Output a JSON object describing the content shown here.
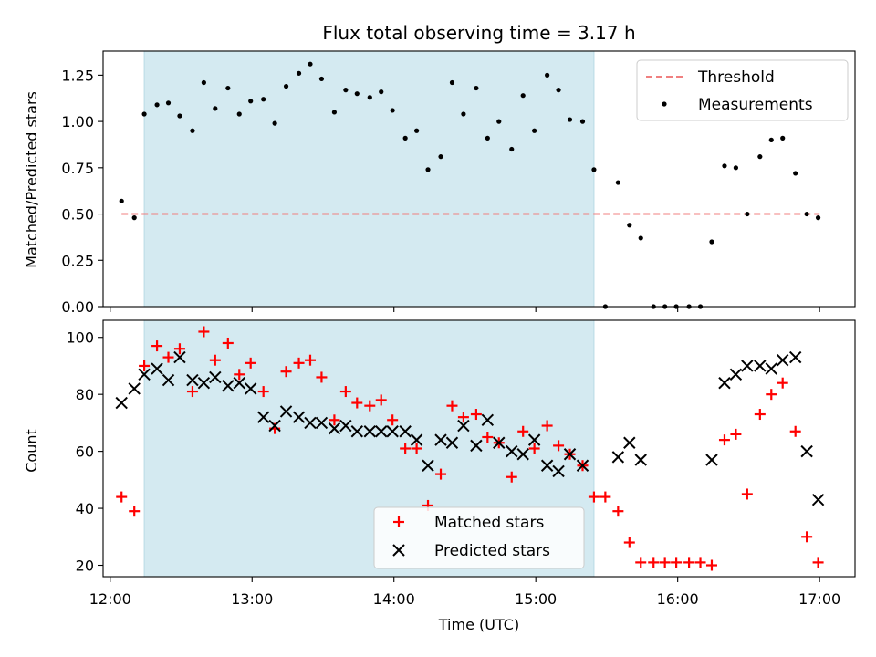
{
  "chart_data": [
    {
      "type": "scatter",
      "title": "Flux total observing time = 3.17 h",
      "ylabel": "Matched/Predicted stars",
      "xlabel": "",
      "xlim": [
        11.95,
        17.25
      ],
      "ylim": [
        0,
        1.38
      ],
      "yticks": [
        0,
        0.25,
        0.5,
        0.75,
        1.0,
        1.25
      ],
      "ytick_labels": [
        "0.00",
        "0.25",
        "0.50",
        "0.75",
        "1.00",
        "1.25"
      ],
      "xticks": [
        12,
        13,
        14,
        15,
        16,
        17
      ],
      "shaded_x": [
        12.24,
        15.41
      ],
      "shade_color": "#d4eaf1",
      "legend_position": "top-right",
      "threshold": {
        "name": "Threshold",
        "x": [
          12.08,
          17.0
        ],
        "y": 0.5,
        "color": "#f08080"
      },
      "series": [
        {
          "name": "Measurements",
          "color": "#000000",
          "x": [
            12.08,
            12.17,
            12.24,
            12.33,
            12.41,
            12.49,
            12.58,
            12.66,
            12.74,
            12.83,
            12.91,
            12.99,
            13.08,
            13.16,
            13.24,
            13.33,
            13.41,
            13.49,
            13.58,
            13.66,
            13.74,
            13.83,
            13.91,
            13.99,
            14.08,
            14.16,
            14.24,
            14.33,
            14.41,
            14.49,
            14.58,
            14.66,
            14.74,
            14.83,
            14.91,
            14.99,
            15.08,
            15.16,
            15.24,
            15.33,
            15.41,
            15.49,
            15.58,
            15.66,
            15.74,
            15.83,
            15.91,
            15.99,
            16.08,
            16.16,
            16.24,
            16.33,
            16.41,
            16.49,
            16.58,
            16.66,
            16.74,
            16.83,
            16.91,
            16.99
          ],
          "y": [
            0.57,
            0.48,
            1.04,
            1.09,
            1.1,
            1.03,
            0.95,
            1.21,
            1.07,
            1.18,
            1.04,
            1.11,
            1.12,
            0.99,
            1.19,
            1.26,
            1.31,
            1.23,
            1.05,
            1.17,
            1.15,
            1.13,
            1.16,
            1.06,
            0.91,
            0.95,
            0.74,
            0.81,
            1.21,
            1.04,
            1.18,
            0.91,
            1.0,
            0.85,
            1.14,
            0.95,
            1.25,
            1.17,
            1.01,
            1.0,
            0.74,
            0.0,
            0.67,
            0.44,
            0.37,
            0.0,
            0.0,
            0.0,
            0.0,
            0.0,
            0.35,
            0.76,
            0.75,
            0.5,
            0.81,
            0.9,
            0.91,
            0.72,
            0.5,
            0.48
          ]
        }
      ]
    },
    {
      "type": "scatter",
      "title": "",
      "ylabel": "Count",
      "xlabel": "Time (UTC)",
      "xlim": [
        11.95,
        17.25
      ],
      "ylim": [
        16,
        106
      ],
      "yticks": [
        20,
        40,
        60,
        80,
        100
      ],
      "ytick_labels": [
        "20",
        "40",
        "60",
        "80",
        "100"
      ],
      "xticks": [
        12,
        13,
        14,
        15,
        16,
        17
      ],
      "xtick_labels": [
        "12:00",
        "13:00",
        "14:00",
        "15:00",
        "16:00",
        "17:00"
      ],
      "shaded_x": [
        12.24,
        15.41
      ],
      "shade_color": "#d4eaf1",
      "legend_position": "bottom-center",
      "series": [
        {
          "name": "Matched stars",
          "marker": "plus",
          "color": "#ff0000",
          "x": [
            12.08,
            12.17,
            12.24,
            12.33,
            12.41,
            12.49,
            12.58,
            12.66,
            12.74,
            12.83,
            12.91,
            12.99,
            13.08,
            13.16,
            13.24,
            13.33,
            13.41,
            13.49,
            13.58,
            13.66,
            13.74,
            13.83,
            13.91,
            13.99,
            14.08,
            14.16,
            14.24,
            14.33,
            14.41,
            14.49,
            14.58,
            14.66,
            14.74,
            14.83,
            14.91,
            14.99,
            15.08,
            15.16,
            15.24,
            15.33,
            15.41,
            15.49,
            15.58,
            15.66,
            15.74,
            15.83,
            15.91,
            15.99,
            16.08,
            16.16,
            16.24,
            16.33,
            16.41,
            16.49,
            16.58,
            16.66,
            16.74,
            16.83,
            16.91,
            16.99
          ],
          "y": [
            44,
            39,
            90,
            97,
            93,
            96,
            81,
            102,
            92,
            98,
            87,
            91,
            81,
            68,
            88,
            91,
            92,
            86,
            71,
            81,
            77,
            76,
            78,
            71,
            61,
            61,
            41,
            52,
            76,
            72,
            73,
            65,
            63,
            51,
            67,
            61,
            69,
            62,
            59,
            55,
            44,
            44,
            39,
            28,
            21,
            21,
            21,
            21,
            21,
            21,
            20,
            64,
            66,
            45,
            73,
            80,
            84,
            67,
            30,
            21
          ]
        },
        {
          "name": "Predicted stars",
          "marker": "x",
          "color": "#000000",
          "x": [
            12.08,
            12.17,
            12.24,
            12.33,
            12.41,
            12.49,
            12.58,
            12.66,
            12.74,
            12.83,
            12.91,
            12.99,
            13.08,
            13.16,
            13.24,
            13.33,
            13.41,
            13.49,
            13.58,
            13.66,
            13.74,
            13.83,
            13.91,
            13.99,
            14.08,
            14.16,
            14.24,
            14.33,
            14.41,
            14.49,
            14.58,
            14.66,
            14.74,
            14.83,
            14.91,
            14.99,
            15.08,
            15.16,
            15.24,
            15.33,
            15.58,
            15.66,
            15.74,
            16.24,
            16.33,
            16.41,
            16.49,
            16.58,
            16.66,
            16.74,
            16.83,
            16.91,
            16.99
          ],
          "y": [
            77,
            82,
            87,
            89,
            85,
            93,
            85,
            84,
            86,
            83,
            84,
            82,
            72,
            69,
            74,
            72,
            70,
            70,
            68,
            69,
            67,
            67,
            67,
            67,
            67,
            64,
            55,
            64,
            63,
            69,
            62,
            71,
            63,
            60,
            59,
            64,
            55,
            53,
            59,
            55,
            58,
            63,
            57,
            57,
            84,
            87,
            90,
            90,
            89,
            92,
            93,
            60,
            43
          ]
        }
      ]
    }
  ]
}
